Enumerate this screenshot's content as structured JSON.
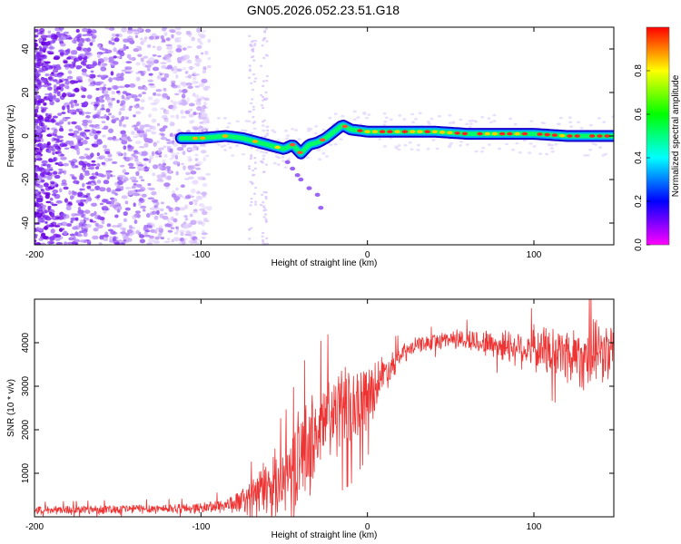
{
  "title": "GN05.2026.052.23.51.G18",
  "chart_data": [
    {
      "type": "heatmap",
      "name": "spectrogram",
      "xlabel": "Height of straight line (km)",
      "ylabel": "Frequency (Hz)",
      "xlim": [
        -200,
        148
      ],
      "ylim": [
        -50,
        50
      ],
      "xticks": [
        -200,
        -100,
        0,
        100
      ],
      "yticks": [
        -40,
        -20,
        0,
        20,
        40
      ],
      "colorbar": {
        "label": "Normalized spectral amplitude",
        "range": [
          0,
          1
        ],
        "ticks": [
          "0.0",
          "0.2",
          "0.4",
          "0.6",
          "0.8"
        ],
        "colors": [
          "#ff00ff",
          "#0000ff",
          "#00ffff",
          "#00ff00",
          "#ffff00",
          "#ff0000"
        ]
      },
      "ridge": {
        "x": [
          -112,
          -100,
          -85,
          -75,
          -65,
          -55,
          -50,
          -45,
          -40,
          -35,
          -30,
          -25,
          -20,
          -15,
          -10,
          0,
          20,
          40,
          60,
          80,
          100,
          120,
          148
        ],
        "freq": [
          -1,
          -1,
          0,
          -1,
          -3,
          -5,
          -6,
          -4,
          -8,
          -4,
          -3,
          -1,
          2,
          5,
          3,
          2,
          2,
          2,
          1,
          1,
          1,
          0,
          0
        ]
      }
    },
    {
      "type": "line",
      "name": "snr",
      "xlabel": "Height of straight line (km)",
      "ylabel": "SNR (10 * v/v)",
      "xlim": [
        -200,
        148
      ],
      "ylim": [
        0,
        5000
      ],
      "xticks": [
        -200,
        -100,
        0,
        100
      ],
      "yticks": [
        1000,
        2000,
        3000,
        4000
      ],
      "color": "#ee3333",
      "series": [
        {
          "name": "SNR",
          "x": [
            -200,
            -150,
            -100,
            -80,
            -70,
            -60,
            -50,
            -40,
            -30,
            -20,
            -10,
            0,
            10,
            20,
            30,
            50,
            70,
            90,
            110,
            130,
            148
          ],
          "y": [
            150,
            180,
            200,
            300,
            450,
            700,
            900,
            1400,
            1900,
            2400,
            2500,
            2800,
            3300,
            3700,
            3950,
            4100,
            4000,
            3900,
            3800,
            3700,
            3800
          ],
          "spread": [
            120,
            130,
            140,
            250,
            500,
            800,
            900,
            1300,
            1300,
            1200,
            1100,
            900,
            500,
            300,
            200,
            250,
            350,
            500,
            700,
            900,
            800
          ]
        }
      ]
    }
  ]
}
